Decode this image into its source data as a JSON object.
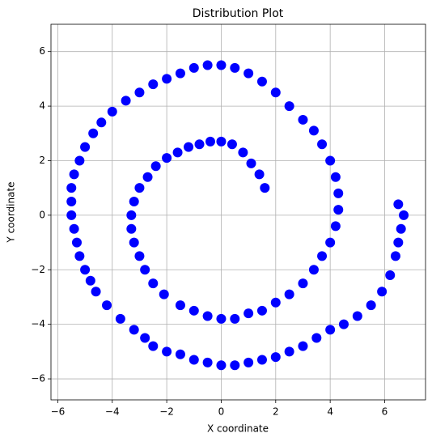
{
  "chart_data": {
    "type": "scatter",
    "title": "Distribution Plot",
    "xlabel": "X coordinate",
    "ylabel": "Y coordinate",
    "color": "#0000ff",
    "grid": true,
    "xlim": [
      -6.25,
      7.5
    ],
    "ylim": [
      -6.77,
      7.0
    ],
    "xticks": [
      {
        "value": -6,
        "label": "−6"
      },
      {
        "value": -4,
        "label": "−4"
      },
      {
        "value": -2,
        "label": "−2"
      },
      0,
      2,
      4,
      6
    ],
    "yticks": [
      {
        "value": -6,
        "label": "−6"
      },
      {
        "value": -4,
        "label": "−4"
      },
      {
        "value": -2,
        "label": "−2"
      },
      0,
      2,
      4,
      6
    ],
    "x": [
      1.6,
      1.4,
      1.1,
      0.8,
      0.4,
      0,
      -0.4,
      -0.8,
      -1.2,
      -1.6,
      -2,
      -2.4,
      -2.7,
      -3,
      -3.2,
      -3.3,
      -3.3,
      -3.2,
      -3,
      -2.8,
      -2.5,
      -2.1,
      -1.5,
      -1,
      -0.5,
      0,
      0.5,
      1,
      1.5,
      2,
      2.5,
      3,
      3.4,
      3.7,
      4,
      4.2,
      4.3,
      4.3,
      4.2,
      4,
      3.7,
      3.4,
      3,
      2.5,
      2,
      1.5,
      1,
      0.5,
      0,
      -0.5,
      -1,
      -1.5,
      -2,
      -2.5,
      -3,
      -3.5,
      -4,
      -4.4,
      -4.7,
      -5,
      -5.2,
      -5.4,
      -5.5,
      -5.5,
      -5.5,
      -5.4,
      -5.3,
      -5.2,
      -5,
      -4.8,
      -4.6,
      -4.2,
      -3.7,
      -3.2,
      -2.8,
      -2.5,
      -2,
      -1.5,
      -1,
      -0.5,
      0,
      0.5,
      1,
      1.5,
      2,
      2.5,
      3,
      3.5,
      4,
      4.5,
      5,
      5.5,
      5.9,
      6.2,
      6.4,
      6.5,
      6.6,
      6.7,
      6.5
    ],
    "y": [
      1.0,
      1.5,
      1.9,
      2.3,
      2.6,
      2.7,
      2.7,
      2.6,
      2.5,
      2.3,
      2.1,
      1.8,
      1.4,
      1,
      0.5,
      0,
      -0.5,
      -1,
      -1.5,
      -2,
      -2.5,
      -2.9,
      -3.3,
      -3.5,
      -3.7,
      -3.8,
      -3.8,
      -3.6,
      -3.5,
      -3.2,
      -2.9,
      -2.5,
      -2,
      -1.5,
      -1,
      -0.4,
      0.2,
      0.8,
      1.4,
      2,
      2.6,
      3.1,
      3.5,
      4,
      4.5,
      4.9,
      5.2,
      5.4,
      5.5,
      5.5,
      5.4,
      5.2,
      5,
      4.8,
      4.5,
      4.2,
      3.8,
      3.4,
      3,
      2.5,
      2,
      1.5,
      1,
      0.5,
      0,
      -0.5,
      -1,
      -1.5,
      -2,
      -2.4,
      -2.8,
      -3.3,
      -3.8,
      -4.2,
      -4.5,
      -4.8,
      -5,
      -5.1,
      -5.3,
      -5.4,
      -5.5,
      -5.5,
      -5.4,
      -5.3,
      -5.2,
      -5,
      -4.8,
      -4.5,
      -4.2,
      -4,
      -3.7,
      -3.3,
      -2.8,
      -2.2,
      -1.5,
      -1,
      -0.5,
      0,
      0.4
    ]
  }
}
